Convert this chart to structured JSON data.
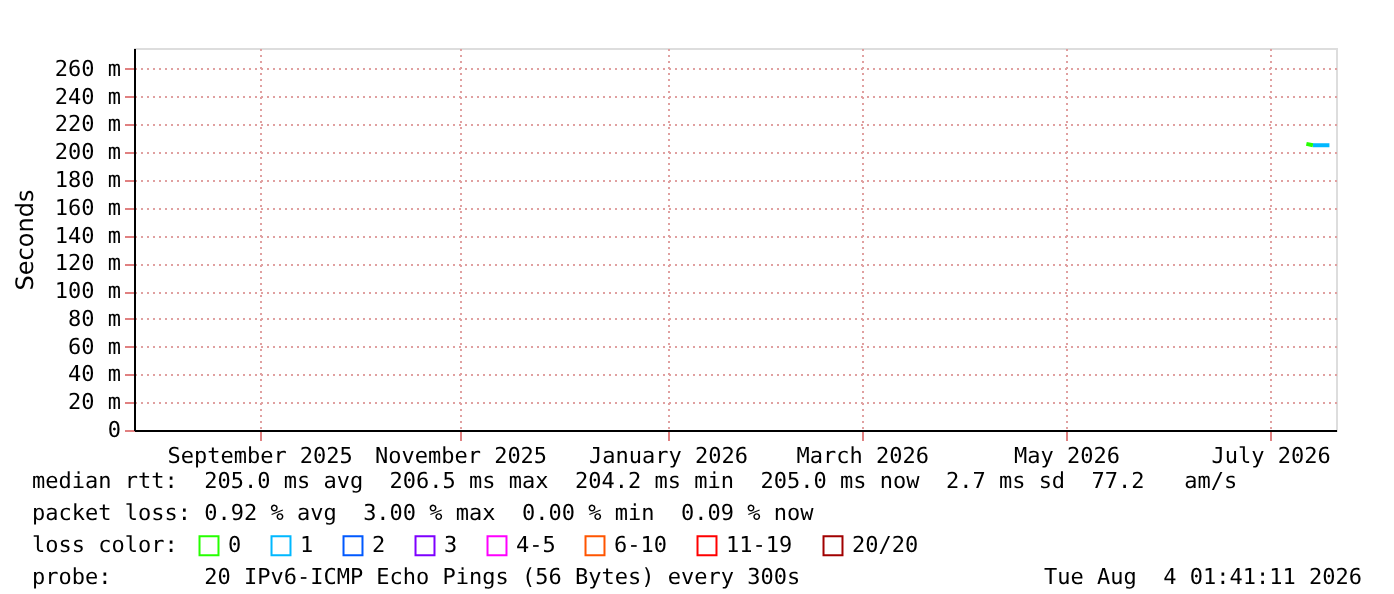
{
  "chart_data": {
    "type": "line",
    "ylabel": "Seconds",
    "xlim": [
      "2025-08-04",
      "2026-08-04"
    ],
    "xticks": [
      {
        "value": "2025-09-11",
        "label": "September 2025"
      },
      {
        "value": "2025-11-11",
        "label": "November 2025"
      },
      {
        "value": "2026-01-13",
        "label": "January 2026"
      },
      {
        "value": "2026-03-13",
        "label": "March 2026"
      },
      {
        "value": "2026-05-14",
        "label": "May 2026"
      },
      {
        "value": "2026-07-15",
        "label": "July 2026"
      }
    ],
    "ylim": [
      0,
      275
    ],
    "yticks": [
      0,
      {
        "value": 20,
        "label": "20 m"
      },
      {
        "value": 40,
        "label": "40 m"
      },
      {
        "value": 60,
        "label": "60 m"
      },
      {
        "value": 80,
        "label": "80 m"
      },
      {
        "value": 100,
        "label": "100 m"
      },
      {
        "value": 120,
        "label": "120 m"
      },
      {
        "value": 140,
        "label": "140 m"
      },
      {
        "value": 160,
        "label": "160 m"
      },
      {
        "value": 180,
        "label": "180 m"
      },
      {
        "value": 200,
        "label": "200 m"
      },
      {
        "value": 220,
        "label": "220 m"
      },
      {
        "value": 240,
        "label": "240 m"
      },
      {
        "value": 260,
        "label": "260 m"
      }
    ],
    "legend_title": "loss color:",
    "series": [
      {
        "name": "0",
        "color": "#26ff00",
        "x": [
          "2026-07-26",
          "2026-07-28"
        ],
        "values": [
          206,
          205
        ]
      },
      {
        "name": "1",
        "color": "#00b8ff",
        "x": [
          "2026-07-28",
          "2026-08-02"
        ],
        "values": [
          205,
          205
        ]
      },
      {
        "name": "2",
        "color": "#0059ff"
      },
      {
        "name": "3",
        "color": "#7e00ff"
      },
      {
        "name": "4-5",
        "color": "#ff00ff"
      },
      {
        "name": "6-10",
        "color": "#ff5500"
      },
      {
        "name": "11-19",
        "color": "#ff0000"
      },
      {
        "name": "20/20",
        "color": "#a10000"
      }
    ],
    "annotations": [
      "median rtt:  205.0 ms avg  206.5 ms max  204.2 ms min  205.0 ms now  2.7 ms sd  77.2   am/s",
      "packet loss: 0.92 % avg  3.00 % max  0.00 % min  0.09 % now",
      "probe:       20 IPv6-ICMP Echo Pings (56 Bytes) every 300s",
      "Tue Aug  4 01:41:11 2026"
    ],
    "grid": true,
    "legend": "bottom",
    "marker": "none",
    "line_style": "solid"
  }
}
